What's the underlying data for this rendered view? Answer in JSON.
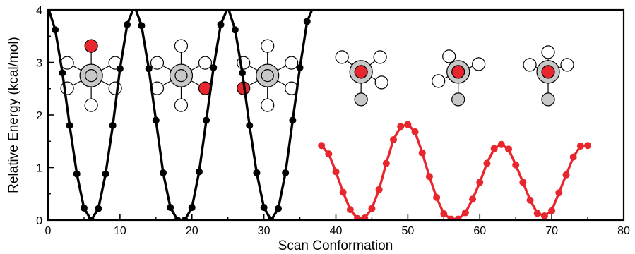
{
  "chart_data": {
    "type": "scatter",
    "title": "",
    "xlabel": "Scan Conformation",
    "ylabel": "Relative Energy (kcal/mol)",
    "xlim": [
      0,
      80
    ],
    "ylim": [
      0,
      4
    ],
    "x_ticks": [
      "0",
      "10",
      "20",
      "30",
      "40",
      "50",
      "60",
      "70",
      "80"
    ],
    "y_ticks": [
      "0",
      "1",
      "2",
      "3",
      "4"
    ],
    "grid": false,
    "legend": "none",
    "series": [
      {
        "color": "#000000",
        "marker": "circle",
        "line": true,
        "points": [
          [
            0,
            4.05
          ],
          [
            1,
            3.62
          ],
          [
            2,
            2.8
          ],
          [
            3,
            1.8
          ],
          [
            4,
            0.88
          ],
          [
            5,
            0.23
          ],
          [
            6,
            0.0
          ],
          [
            7,
            0.22
          ],
          [
            8,
            0.88
          ],
          [
            9,
            1.8
          ],
          [
            10,
            2.88
          ],
          [
            11,
            3.72
          ],
          [
            12,
            4.08
          ],
          [
            13,
            3.7
          ],
          [
            14,
            2.88
          ],
          [
            15,
            1.9
          ],
          [
            16,
            0.9
          ],
          [
            17,
            0.24
          ],
          [
            18,
            0.0
          ],
          [
            19,
            0.0
          ],
          [
            20,
            0.24
          ],
          [
            21,
            0.92
          ],
          [
            22,
            1.9
          ],
          [
            23,
            2.9
          ],
          [
            24,
            3.72
          ],
          [
            25,
            4.05
          ],
          [
            26,
            3.62
          ],
          [
            27,
            2.8
          ],
          [
            28,
            1.8
          ],
          [
            29,
            0.9
          ],
          [
            30,
            0.24
          ],
          [
            31,
            0.0
          ],
          [
            32,
            0.22
          ],
          [
            33,
            0.9
          ],
          [
            34,
            1.9
          ],
          [
            35,
            2.9
          ],
          [
            36,
            3.78
          ],
          [
            37,
            4.1
          ]
        ]
      },
      {
        "color": "#e8262d",
        "marker": "circle",
        "line": true,
        "points": [
          [
            38,
            1.42
          ],
          [
            39,
            1.26
          ],
          [
            40,
            0.92
          ],
          [
            41,
            0.53
          ],
          [
            42,
            0.2
          ],
          [
            43,
            0.03
          ],
          [
            44,
            0.04
          ],
          [
            45,
            0.22
          ],
          [
            46,
            0.58
          ],
          [
            47,
            1.08
          ],
          [
            48,
            1.53
          ],
          [
            49,
            1.78
          ],
          [
            50,
            1.82
          ],
          [
            51,
            1.68
          ],
          [
            52,
            1.28
          ],
          [
            53,
            0.83
          ],
          [
            54,
            0.43
          ],
          [
            55,
            0.12
          ],
          [
            56,
            0.02
          ],
          [
            57,
            0.02
          ],
          [
            58,
            0.14
          ],
          [
            59,
            0.4
          ],
          [
            60,
            0.72
          ],
          [
            61,
            1.08
          ],
          [
            62,
            1.36
          ],
          [
            63,
            1.44
          ],
          [
            64,
            1.35
          ],
          [
            65,
            1.05
          ],
          [
            66,
            0.72
          ],
          [
            67,
            0.38
          ],
          [
            68,
            0.13
          ],
          [
            69,
            0.08
          ],
          [
            70,
            0.18
          ],
          [
            71,
            0.52
          ],
          [
            72,
            0.86
          ],
          [
            73,
            1.2
          ],
          [
            74,
            1.41
          ],
          [
            75,
            1.42
          ]
        ]
      }
    ],
    "molecule_insets": [
      {
        "style": "side-view",
        "atom_x": 6,
        "atom_y": 2.75,
        "red_position": "top"
      },
      {
        "style": "side-view",
        "atom_x": 18.5,
        "atom_y": 2.75,
        "red_position": "lower-right"
      },
      {
        "style": "side-view",
        "atom_x": 30.5,
        "atom_y": 2.75,
        "red_position": "lower-left"
      },
      {
        "style": "top-view",
        "atom_x": 43.5,
        "atom_y": 2.82,
        "red_position": "center"
      },
      {
        "style": "top-view",
        "atom_x": 57,
        "atom_y": 2.82,
        "red_position": "center"
      },
      {
        "style": "top-view",
        "atom_x": 69.5,
        "atom_y": 2.82,
        "red_position": "center"
      }
    ]
  }
}
